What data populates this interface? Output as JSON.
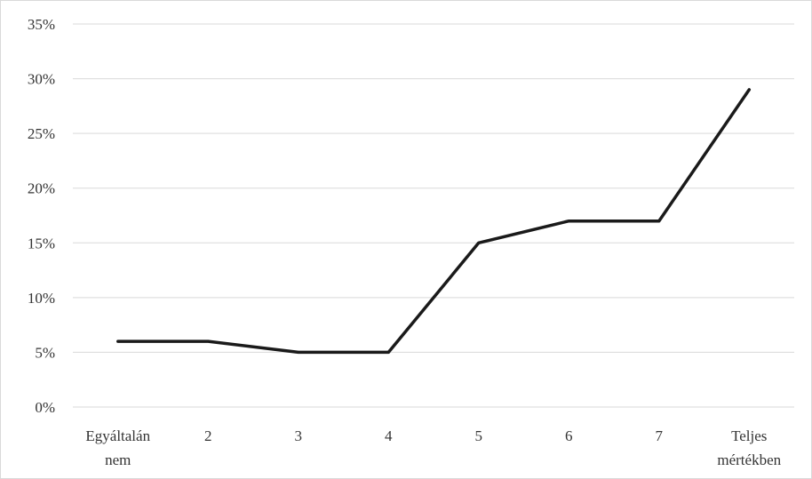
{
  "chart_data": {
    "type": "line",
    "categories": [
      [
        "Egyáltalán",
        "nem"
      ],
      [
        "2"
      ],
      [
        "3"
      ],
      [
        "4"
      ],
      [
        "5"
      ],
      [
        "6"
      ],
      [
        "7"
      ],
      [
        "Teljes",
        "mértékben"
      ]
    ],
    "series": [
      {
        "values": [
          6,
          6,
          5,
          5,
          15,
          17,
          17,
          29
        ]
      }
    ],
    "y_ticks": [
      "0%",
      "5%",
      "10%",
      "15%",
      "20%",
      "25%",
      "30%",
      "35%"
    ],
    "ylim": [
      0,
      35
    ],
    "grid": true,
    "legend": "none",
    "colors": {
      "line": "#1a1a1a",
      "grid": "#d9d9d9"
    }
  }
}
